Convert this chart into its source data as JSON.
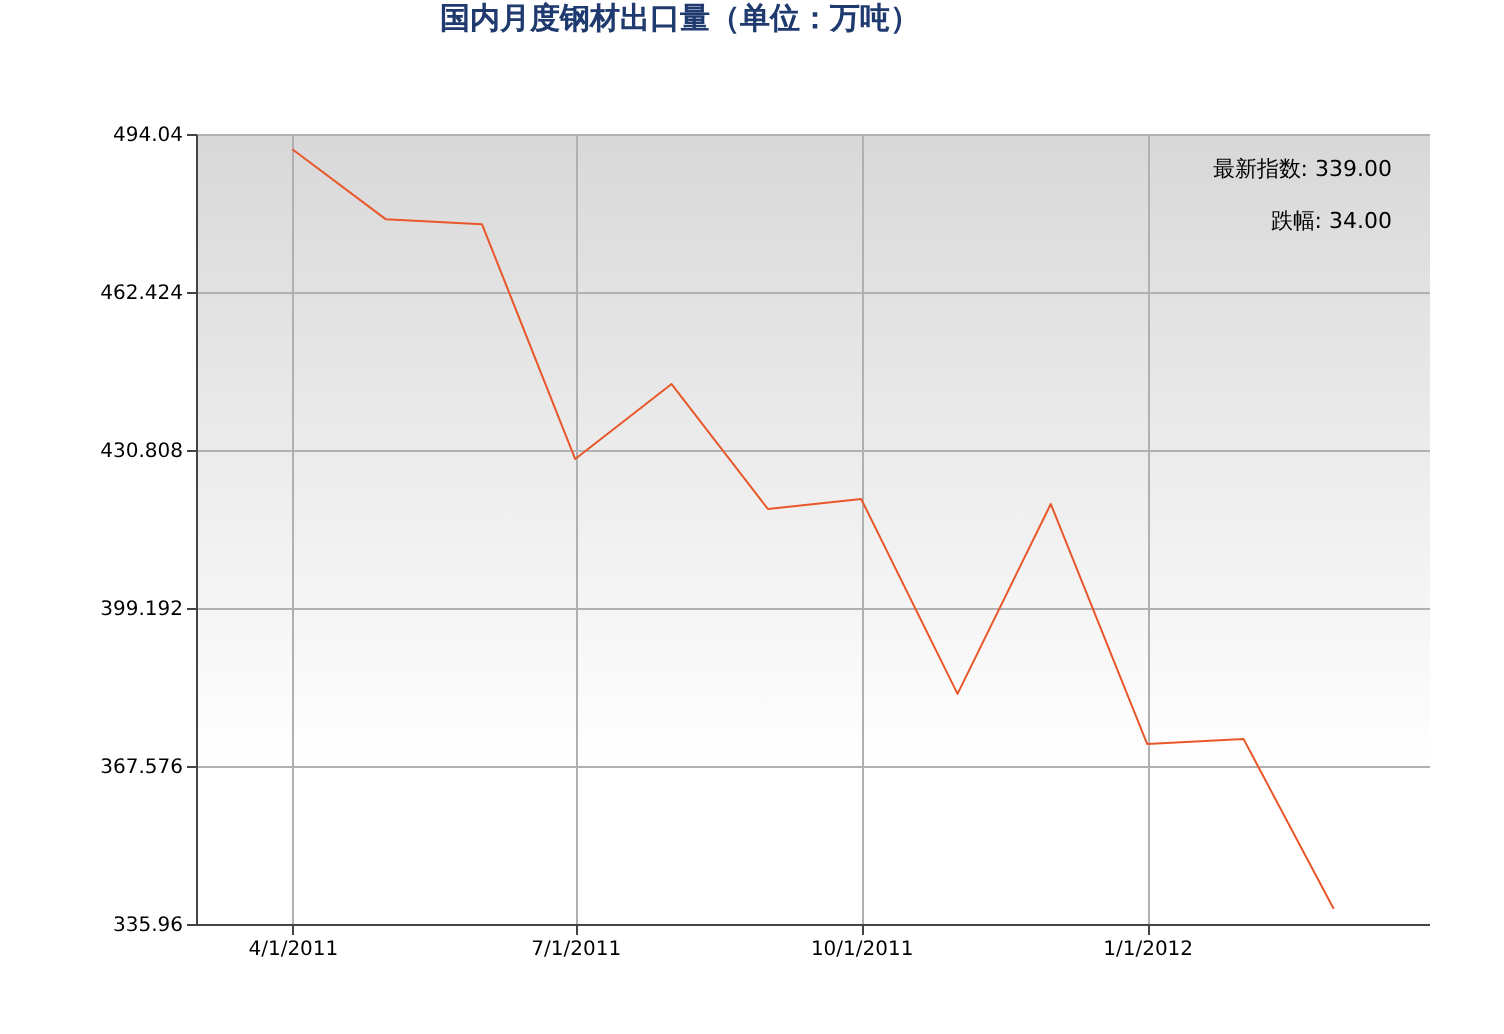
{
  "chart_data": {
    "type": "line",
    "title": "国内月度钢材出口量（单位：万吨）",
    "x": [
      "2011-04-01",
      "2011-05-01",
      "2011-06-01",
      "2011-07-01",
      "2011-08-01",
      "2011-09-01",
      "2011-10-01",
      "2011-11-01",
      "2011-12-01",
      "2012-01-01",
      "2012-02-01",
      "2012-03-01"
    ],
    "series": [
      {
        "color": "#e8572a",
        "values": [
          491,
          477,
          476,
          429,
          444,
          419,
          421,
          382,
          420,
          372,
          373,
          339
        ]
      }
    ],
    "xlim": [
      "2011-03-01",
      "2012-04-01"
    ],
    "xticks": [
      {
        "value": "2011-04-01",
        "label": "4/1/2011"
      },
      {
        "value": "2011-07-01",
        "label": "7/1/2011"
      },
      {
        "value": "2011-10-01",
        "label": "10/1/2011"
      },
      {
        "value": "2012-01-01",
        "label": "1/1/2012"
      }
    ],
    "ylim": [
      335.96,
      494.04
    ],
    "yticks": [
      335.96,
      367.576,
      399.192,
      430.808,
      462.424,
      494.04
    ],
    "annotations": [
      "最新指数: 339.00",
      "跌幅: 34.00"
    ],
    "grid": true,
    "marker": "none",
    "line_style": "solid"
  }
}
